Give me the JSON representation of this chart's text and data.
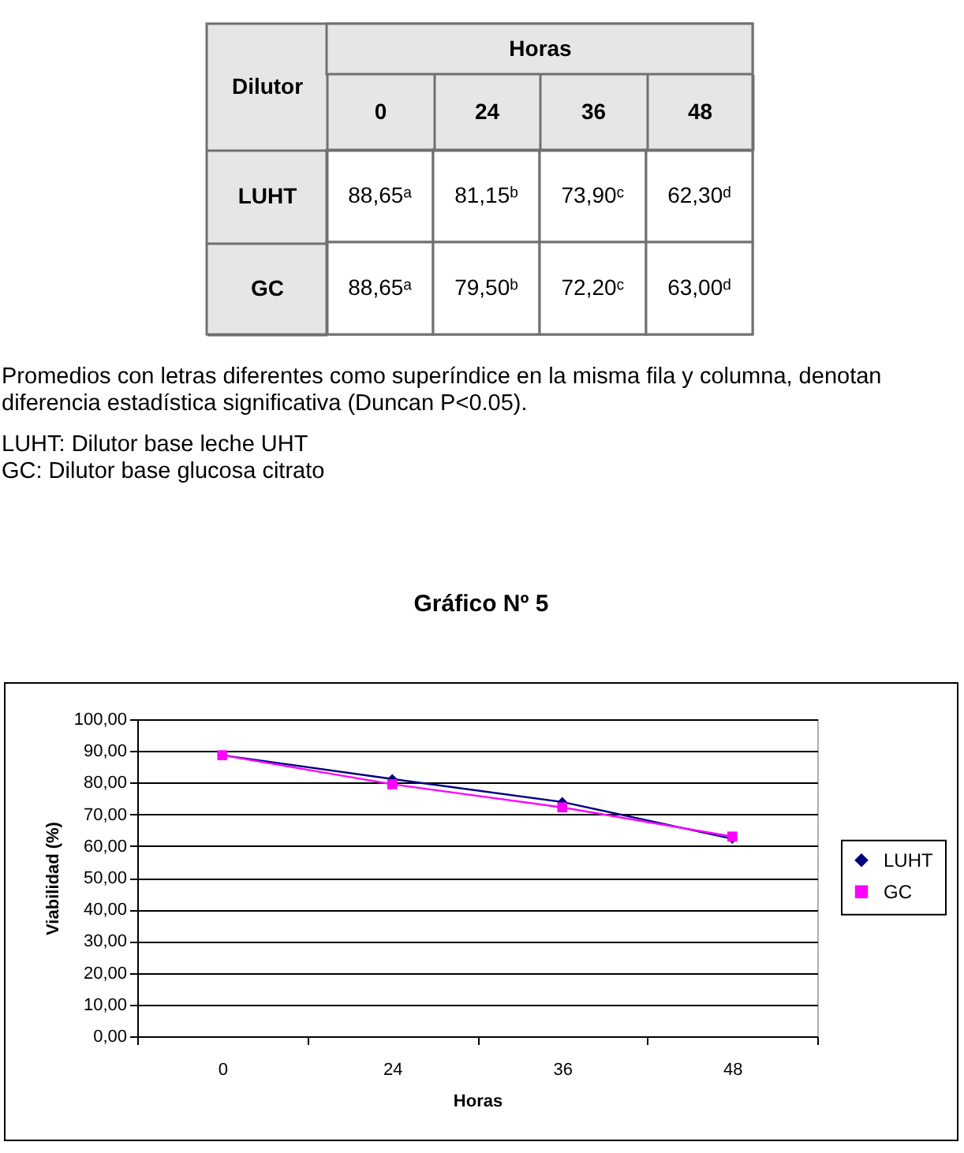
{
  "chart_data": [
    {
      "type": "other",
      "xlabel": "Horas",
      "ylabel": "Dilutor",
      "categories": [
        "0",
        "24",
        "36",
        "48"
      ],
      "y_categories": [
        "LUHT",
        "GC"
      ],
      "cell_labels": [
        [
          "88,65ᵃ",
          "81,15ᵇ",
          "73,90ᶜ",
          "62,30ᵈ"
        ],
        [
          "88,65ᵃ",
          "79,50ᵇ",
          "72,20ᶜ",
          "63,00ᵈ"
        ]
      ],
      "color": "#ffffff",
      "annotations": [
        "Promedios con letras diferentes como superíndice en la misma fila y columna, denotan diferencia estadística significativa (Duncan P<0.05).",
        "LUHT: Dilutor base leche UHT",
        "GC: Dilutor base glucosa citrato"
      ]
    },
    {
      "type": "line",
      "title": "Gráfico Nº 5",
      "xlabel": "Horas",
      "ylabel": "Viabilidad (%)",
      "categories": [
        "0",
        "24",
        "36",
        "48"
      ],
      "series": [
        {
          "name": "LUHT",
          "color": "#000080",
          "marker": "diamond",
          "values": [
            88.65,
            81.15,
            73.9,
            62.3
          ]
        },
        {
          "name": "GC",
          "color": "#ff00ff",
          "marker": "square",
          "values": [
            88.65,
            79.5,
            72.2,
            63.0
          ]
        }
      ],
      "ylim": [
        0,
        100
      ],
      "yticks": [
        {
          "value": 0,
          "label": "0,00"
        },
        {
          "value": 10,
          "label": "10,00"
        },
        {
          "value": 20,
          "label": "20,00"
        },
        {
          "value": 30,
          "label": "30,00"
        },
        {
          "value": 40,
          "label": "40,00"
        },
        {
          "value": 50,
          "label": "50,00"
        },
        {
          "value": 60,
          "label": "60,00"
        },
        {
          "value": 70,
          "label": "70,00"
        },
        {
          "value": 80,
          "label": "80,00"
        },
        {
          "value": 90,
          "label": "90,00"
        },
        {
          "value": 100,
          "label": "100,00"
        }
      ],
      "grid": "y",
      "legend": "right"
    }
  ]
}
